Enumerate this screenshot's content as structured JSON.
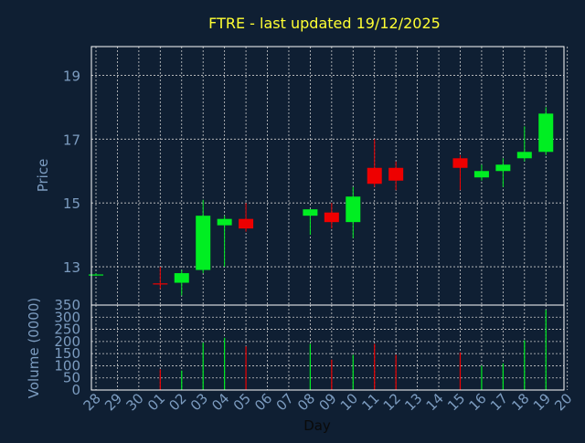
{
  "chart_data": {
    "type": "candlestick",
    "title": "FTRE - last updated 19/12/2025",
    "xlabel": "Day",
    "ylabel": "Price",
    "volume_label": "Volume (0000)",
    "grid": true,
    "price_ylim": [
      11.8,
      19.9
    ],
    "price_ticks": [
      "13",
      "15",
      "17",
      "19"
    ],
    "volume_ylim": [
      0,
      350
    ],
    "volume_ticks": [
      "0",
      "50",
      "100",
      "150",
      "200",
      "250",
      "300",
      "350"
    ],
    "x_ticks": [
      "28",
      "29",
      "30",
      "01",
      "02",
      "03",
      "04",
      "05",
      "06",
      "07",
      "08",
      "09",
      "10",
      "11",
      "12",
      "13",
      "14",
      "15",
      "16",
      "17",
      "18",
      "19",
      "20"
    ],
    "colors": {
      "background": "#0f1f33",
      "axis_text": "#7c9cc0",
      "title": "#ffff33",
      "up": "#00ee22",
      "down": "#ee0000",
      "grid": "#cccccc"
    },
    "candles": [
      {
        "day": "28",
        "open": 12.74,
        "high": 12.79,
        "low": 12.72,
        "close": 12.76,
        "volume": 0
      },
      {
        "day": "01",
        "open": 12.48,
        "high": 13.0,
        "low": 12.3,
        "close": 12.45,
        "volume": 85
      },
      {
        "day": "02",
        "open": 12.5,
        "high": 12.9,
        "low": 12.1,
        "close": 12.8,
        "volume": 80
      },
      {
        "day": "03",
        "open": 12.9,
        "high": 15.1,
        "low": 12.8,
        "close": 14.6,
        "volume": 195
      },
      {
        "day": "04",
        "open": 14.3,
        "high": 14.6,
        "low": 13.0,
        "close": 14.5,
        "volume": 215
      },
      {
        "day": "05",
        "open": 14.5,
        "high": 15.0,
        "low": 14.1,
        "close": 14.2,
        "volume": 180
      },
      {
        "day": "08",
        "open": 14.6,
        "high": 14.8,
        "low": 14.0,
        "close": 14.8,
        "volume": 190
      },
      {
        "day": "09",
        "open": 14.7,
        "high": 15.0,
        "low": 14.2,
        "close": 14.4,
        "volume": 125
      },
      {
        "day": "10",
        "open": 14.4,
        "high": 15.5,
        "low": 13.9,
        "close": 15.2,
        "volume": 145
      },
      {
        "day": "11",
        "open": 16.1,
        "high": 17.0,
        "low": 15.5,
        "close": 15.6,
        "volume": 190
      },
      {
        "day": "12",
        "open": 16.1,
        "high": 16.3,
        "low": 15.4,
        "close": 15.7,
        "volume": 145
      },
      {
        "day": "15",
        "open": 16.4,
        "high": 16.5,
        "low": 15.4,
        "close": 16.1,
        "volume": 155
      },
      {
        "day": "16",
        "open": 15.8,
        "high": 16.2,
        "low": 15.7,
        "close": 16.0,
        "volume": 100
      },
      {
        "day": "17",
        "open": 16.0,
        "high": 16.4,
        "low": 15.5,
        "close": 16.2,
        "volume": 110
      },
      {
        "day": "18",
        "open": 16.4,
        "high": 17.4,
        "low": 16.3,
        "close": 16.6,
        "volume": 205
      },
      {
        "day": "19",
        "open": 16.6,
        "high": 18.0,
        "low": 16.5,
        "close": 17.8,
        "volume": 330
      }
    ]
  }
}
